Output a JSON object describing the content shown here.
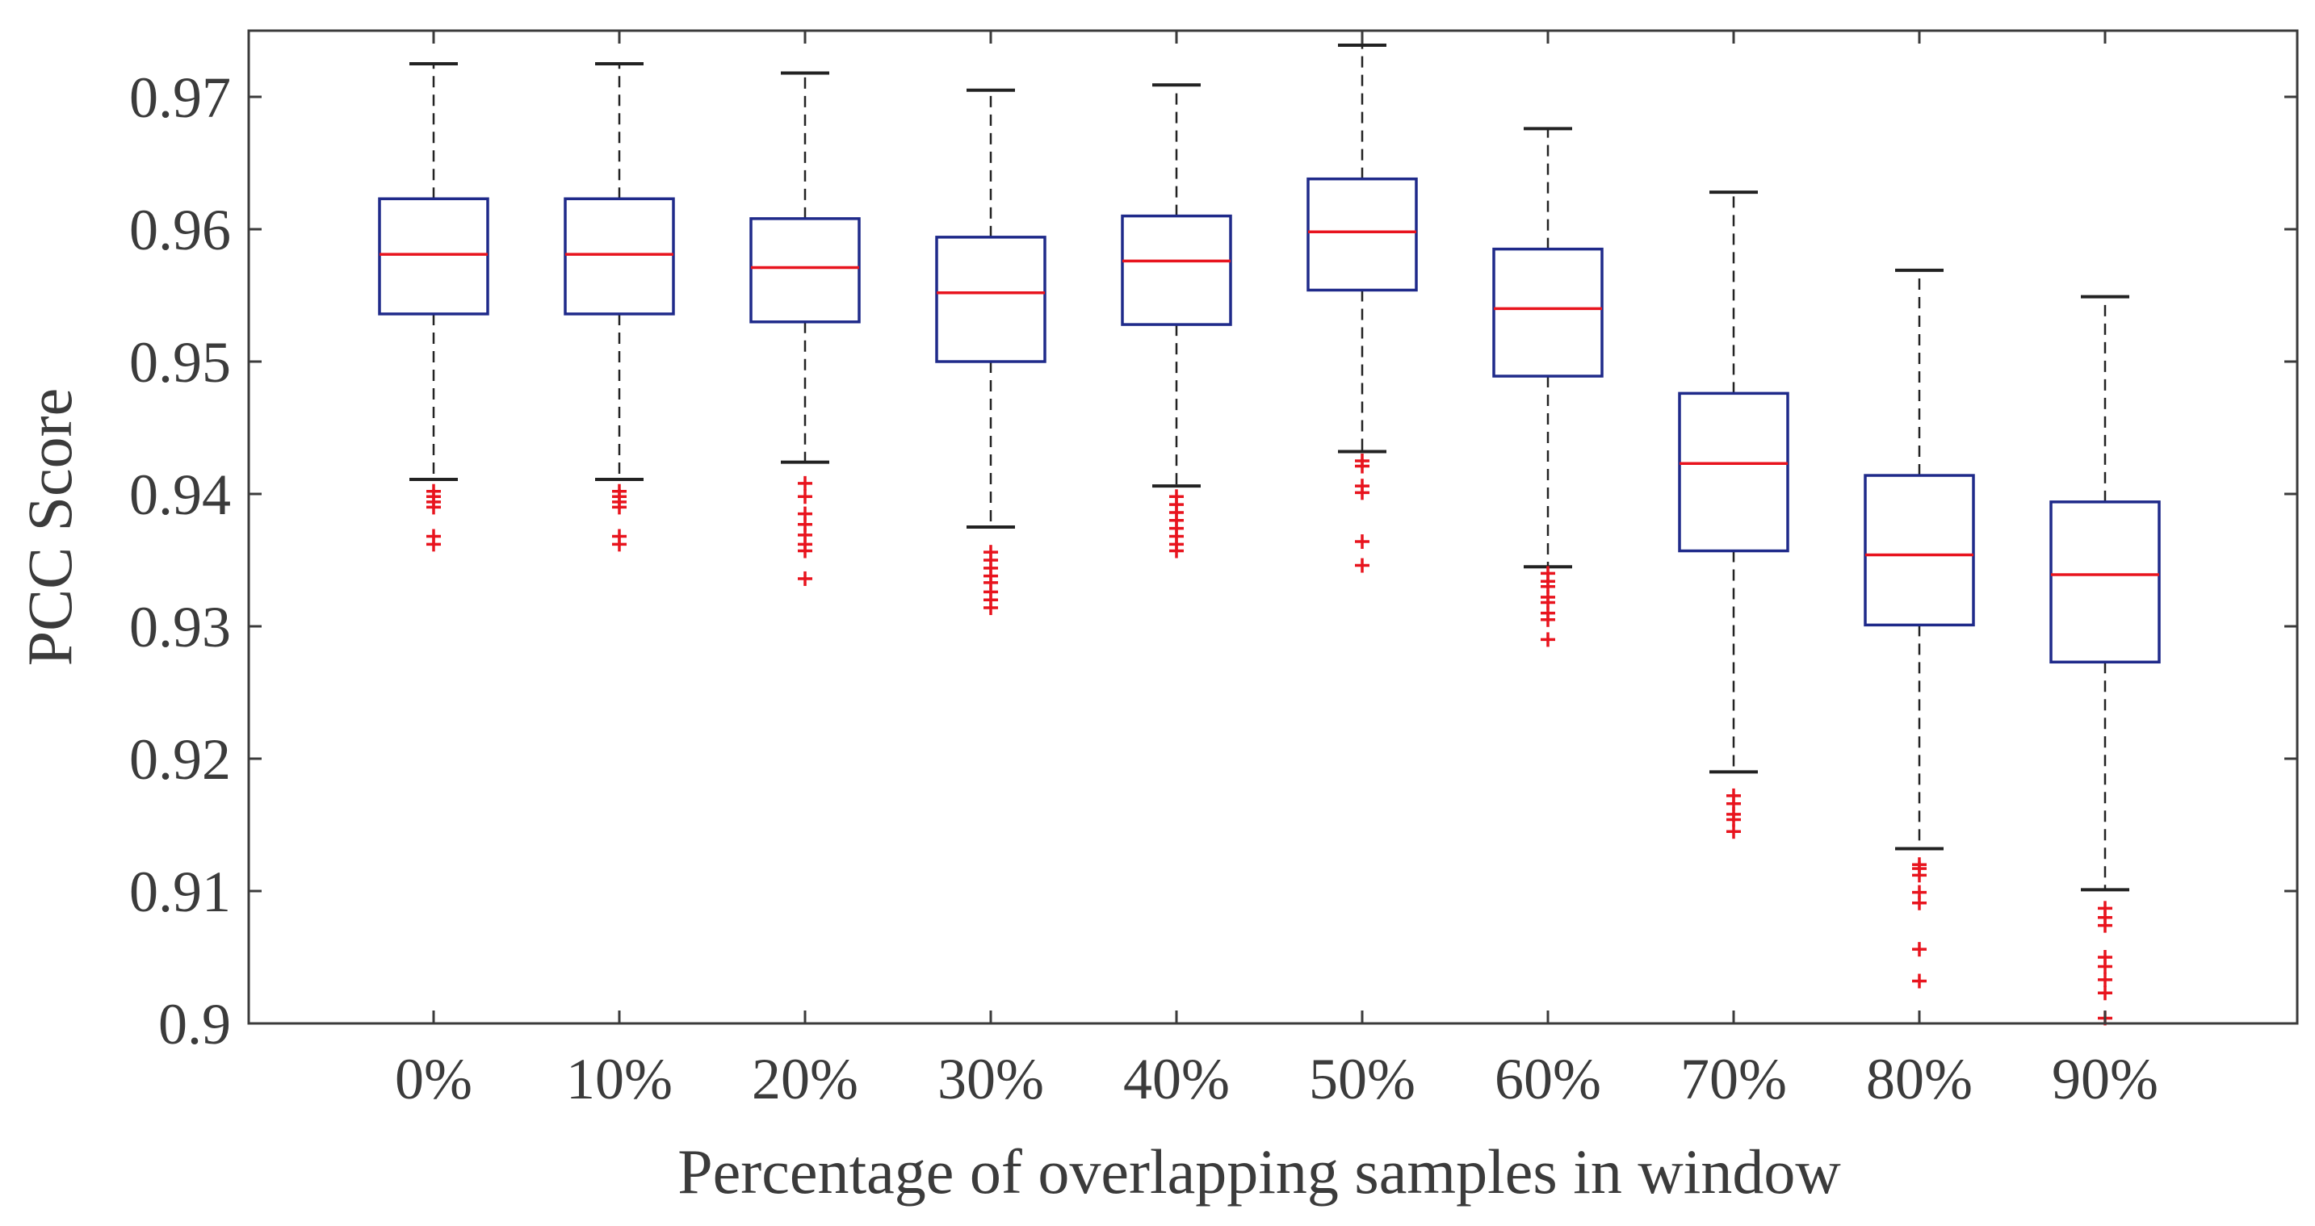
{
  "chart_data": {
    "type": "boxplot",
    "title": "",
    "xlabel": "Percentage of overlapping samples in window",
    "ylabel": "PCC Score",
    "ylim": [
      0.9,
      0.975
    ],
    "yticks": [
      0.9,
      0.91,
      0.92,
      0.93,
      0.94,
      0.95,
      0.96,
      0.97
    ],
    "ytick_labels": [
      "0.9",
      "0.91",
      "0.92",
      "0.93",
      "0.94",
      "0.95",
      "0.96",
      "0.97"
    ],
    "grid": false,
    "colors": {
      "box": "#1f2a8a",
      "median": "#e8141e",
      "whisker": "#222222",
      "outlier": "#e8141e",
      "axis": "#3b3b3b"
    },
    "categories": [
      "0%",
      "10%",
      "20%",
      "30%",
      "40%",
      "50%",
      "60%",
      "70%",
      "80%",
      "90%"
    ],
    "boxes": [
      {
        "category": "0%",
        "whisker_low": 0.9411,
        "q1": 0.9536,
        "median": 0.9581,
        "q3": 0.9623,
        "whisker_high": 0.9725,
        "outliers": [
          0.9402,
          0.9398,
          0.9394,
          0.939,
          0.9368,
          0.9362
        ]
      },
      {
        "category": "10%",
        "whisker_low": 0.9411,
        "q1": 0.9536,
        "median": 0.9581,
        "q3": 0.9623,
        "whisker_high": 0.9725,
        "outliers": [
          0.9402,
          0.9398,
          0.9394,
          0.939,
          0.9368,
          0.9362
        ]
      },
      {
        "category": "20%",
        "whisker_low": 0.9424,
        "q1": 0.953,
        "median": 0.9571,
        "q3": 0.9608,
        "whisker_high": 0.9718,
        "outliers": [
          0.9408,
          0.9398,
          0.9385,
          0.9377,
          0.9369,
          0.9362,
          0.9357,
          0.9336
        ]
      },
      {
        "category": "30%",
        "whisker_low": 0.9375,
        "q1": 0.95,
        "median": 0.9552,
        "q3": 0.9594,
        "whisker_high": 0.9705,
        "outliers": [
          0.9356,
          0.935,
          0.9344,
          0.9338,
          0.9333,
          0.9326,
          0.932,
          0.9314
        ]
      },
      {
        "category": "40%",
        "whisker_low": 0.9406,
        "q1": 0.9528,
        "median": 0.9576,
        "q3": 0.961,
        "whisker_high": 0.9709,
        "outliers": [
          0.9398,
          0.9392,
          0.9386,
          0.938,
          0.9374,
          0.9368,
          0.9362,
          0.9357
        ]
      },
      {
        "category": "50%",
        "whisker_low": 0.9432,
        "q1": 0.9554,
        "median": 0.9598,
        "q3": 0.9638,
        "whisker_high": 0.9739,
        "outliers": [
          0.9425,
          0.9421,
          0.9406,
          0.9401,
          0.9364,
          0.9346
        ]
      },
      {
        "category": "60%",
        "whisker_low": 0.9345,
        "q1": 0.9489,
        "median": 0.954,
        "q3": 0.9585,
        "whisker_high": 0.9676,
        "outliers": [
          0.934,
          0.9334,
          0.933,
          0.9322,
          0.9318,
          0.931,
          0.9305,
          0.929
        ]
      },
      {
        "category": "70%",
        "whisker_low": 0.919,
        "q1": 0.9357,
        "median": 0.9423,
        "q3": 0.9476,
        "whisker_high": 0.9628,
        "outliers": [
          0.9172,
          0.9166,
          0.9158,
          0.9154,
          0.9145
        ]
      },
      {
        "category": "80%",
        "whisker_low": 0.9132,
        "q1": 0.9301,
        "median": 0.9354,
        "q3": 0.9414,
        "whisker_high": 0.9569,
        "outliers": [
          0.912,
          0.9117,
          0.9112,
          0.9099,
          0.9091,
          0.9056,
          0.9032
        ]
      },
      {
        "category": "90%",
        "whisker_low": 0.9101,
        "q1": 0.9273,
        "median": 0.9339,
        "q3": 0.9394,
        "whisker_high": 0.9549,
        "outliers": [
          0.9087,
          0.908,
          0.9074,
          0.905,
          0.9043,
          0.9033,
          0.9023,
          0.9004
        ]
      }
    ]
  }
}
